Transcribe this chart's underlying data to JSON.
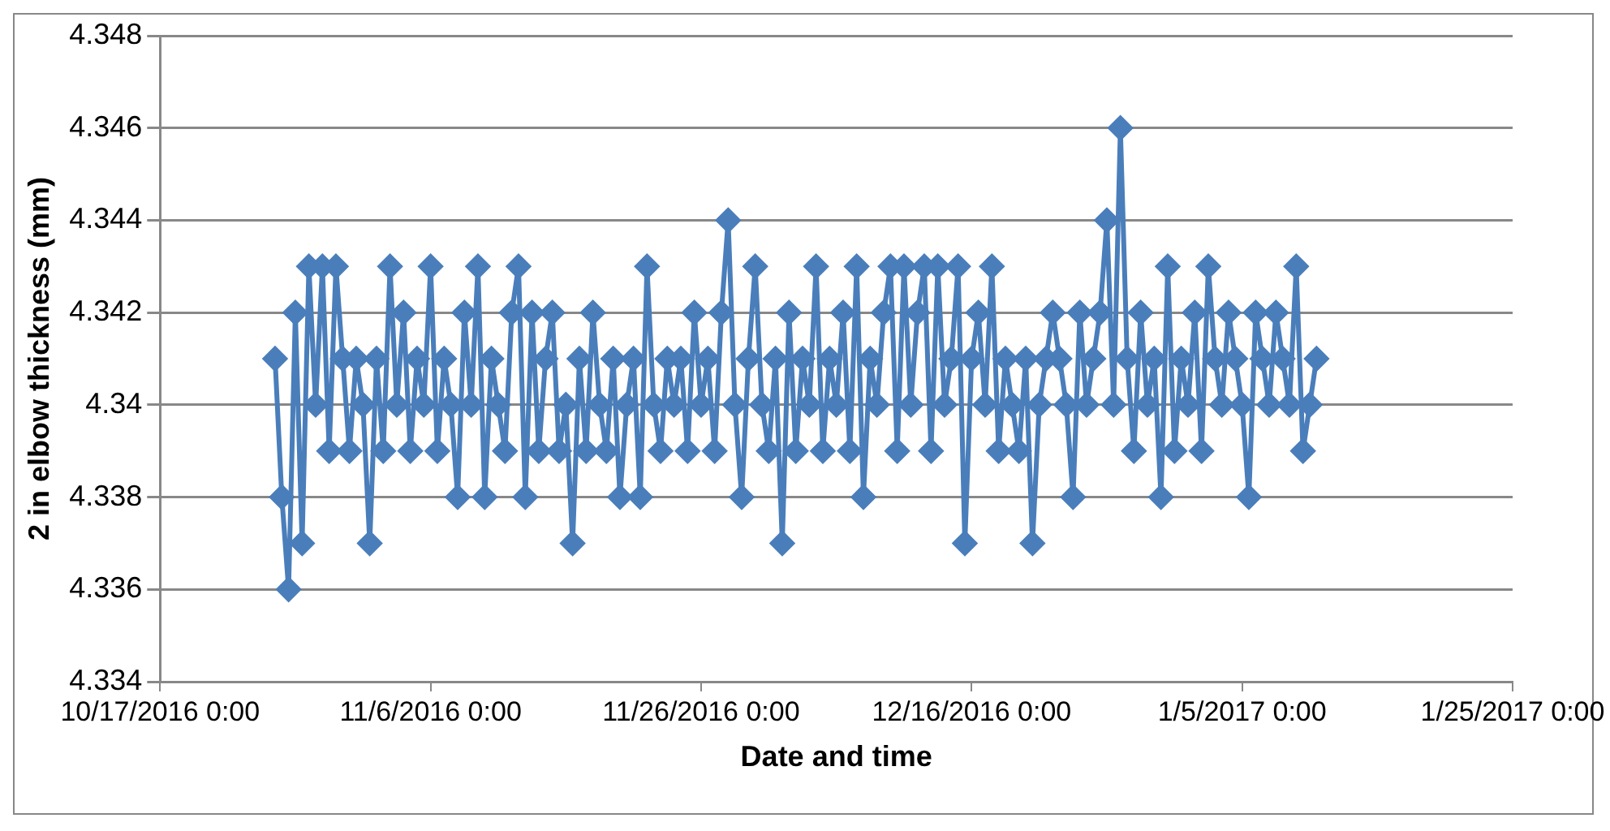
{
  "chart_data": {
    "type": "line",
    "xlabel": "Date and time",
    "ylabel": "2 in elbow thickness (mm)",
    "x": [
      "2016-10-25T12:00",
      "2016-10-26T00:00",
      "2016-10-26T12:00",
      "2016-10-27T00:00",
      "2016-10-27T12:00",
      "2016-10-28T00:00",
      "2016-10-28T12:00",
      "2016-10-29T00:00",
      "2016-10-29T12:00",
      "2016-10-30T00:00",
      "2016-10-30T12:00",
      "2016-10-31T00:00",
      "2016-10-31T12:00",
      "2016-11-01T00:00",
      "2016-11-01T12:00",
      "2016-11-02T00:00",
      "2016-11-02T12:00",
      "2016-11-03T00:00",
      "2016-11-03T12:00",
      "2016-11-04T00:00",
      "2016-11-04T12:00",
      "2016-11-05T00:00",
      "2016-11-05T12:00",
      "2016-11-06T00:00",
      "2016-11-06T12:00",
      "2016-11-07T00:00",
      "2016-11-07T12:00",
      "2016-11-08T00:00",
      "2016-11-08T12:00",
      "2016-11-09T00:00",
      "2016-11-09T12:00",
      "2016-11-10T00:00",
      "2016-11-10T12:00",
      "2016-11-11T00:00",
      "2016-11-11T12:00",
      "2016-11-12T00:00",
      "2016-11-12T12:00",
      "2016-11-13T00:00",
      "2016-11-13T12:00",
      "2016-11-14T00:00",
      "2016-11-14T12:00",
      "2016-11-15T00:00",
      "2016-11-15T12:00",
      "2016-11-16T00:00",
      "2016-11-16T12:00",
      "2016-11-17T00:00",
      "2016-11-17T12:00",
      "2016-11-18T00:00",
      "2016-11-18T12:00",
      "2016-11-19T00:00",
      "2016-11-19T12:00",
      "2016-11-20T00:00",
      "2016-11-20T12:00",
      "2016-11-21T00:00",
      "2016-11-21T12:00",
      "2016-11-22T00:00",
      "2016-11-22T12:00",
      "2016-11-23T00:00",
      "2016-11-23T12:00",
      "2016-11-24T00:00",
      "2016-11-24T12:00",
      "2016-11-25T00:00",
      "2016-11-25T12:00",
      "2016-11-26T00:00",
      "2016-11-26T12:00",
      "2016-11-27T00:00",
      "2016-11-27T12:00",
      "2016-11-28T00:00",
      "2016-11-28T12:00",
      "2016-11-29T00:00",
      "2016-11-29T12:00",
      "2016-11-30T00:00",
      "2016-11-30T12:00",
      "2016-12-01T00:00",
      "2016-12-01T12:00",
      "2016-12-02T00:00",
      "2016-12-02T12:00",
      "2016-12-03T00:00",
      "2016-12-03T12:00",
      "2016-12-04T00:00",
      "2016-12-04T12:00",
      "2016-12-05T00:00",
      "2016-12-05T12:00",
      "2016-12-06T00:00",
      "2016-12-06T12:00",
      "2016-12-07T00:00",
      "2016-12-07T12:00",
      "2016-12-08T00:00",
      "2016-12-08T12:00",
      "2016-12-09T00:00",
      "2016-12-09T12:00",
      "2016-12-10T00:00",
      "2016-12-10T12:00",
      "2016-12-11T00:00",
      "2016-12-11T12:00",
      "2016-12-12T00:00",
      "2016-12-12T12:00",
      "2016-12-13T00:00",
      "2016-12-13T12:00",
      "2016-12-14T00:00",
      "2016-12-14T12:00",
      "2016-12-15T00:00",
      "2016-12-15T12:00",
      "2016-12-16T00:00",
      "2016-12-16T12:00",
      "2016-12-17T00:00",
      "2016-12-17T12:00",
      "2016-12-18T00:00",
      "2016-12-18T12:00",
      "2016-12-19T00:00",
      "2016-12-19T12:00",
      "2016-12-20T00:00",
      "2016-12-20T12:00",
      "2016-12-21T00:00",
      "2016-12-21T12:00",
      "2016-12-22T00:00",
      "2016-12-22T12:00",
      "2016-12-23T00:00",
      "2016-12-23T12:00",
      "2016-12-24T00:00",
      "2016-12-24T12:00",
      "2016-12-25T00:00",
      "2016-12-25T12:00",
      "2016-12-26T00:00",
      "2016-12-26T12:00",
      "2016-12-27T00:00",
      "2016-12-27T12:00",
      "2016-12-28T00:00",
      "2016-12-28T12:00",
      "2016-12-29T00:00",
      "2016-12-29T12:00",
      "2016-12-30T00:00",
      "2016-12-30T12:00",
      "2016-12-31T00:00",
      "2016-12-31T12:00",
      "2017-01-01T00:00",
      "2017-01-01T12:00",
      "2017-01-02T00:00",
      "2017-01-02T12:00",
      "2017-01-03T00:00",
      "2017-01-03T12:00",
      "2017-01-04T00:00",
      "2017-01-04T12:00",
      "2017-01-05T00:00",
      "2017-01-05T12:00",
      "2017-01-06T00:00",
      "2017-01-06T12:00",
      "2017-01-07T00:00",
      "2017-01-07T12:00",
      "2017-01-08T00:00",
      "2017-01-08T12:00",
      "2017-01-09T00:00",
      "2017-01-09T12:00",
      "2017-01-10T00:00",
      "2017-01-10T12:00"
    ],
    "series": [
      {
        "color": "#4a7ebb",
        "values": [
          4.341,
          4.338,
          4.336,
          4.342,
          4.337,
          4.343,
          4.34,
          4.343,
          4.339,
          4.343,
          4.341,
          4.339,
          4.341,
          4.34,
          4.337,
          4.341,
          4.339,
          4.343,
          4.34,
          4.342,
          4.339,
          4.341,
          4.34,
          4.343,
          4.339,
          4.341,
          4.34,
          4.338,
          4.342,
          4.34,
          4.343,
          4.338,
          4.341,
          4.34,
          4.339,
          4.342,
          4.343,
          4.338,
          4.342,
          4.339,
          4.341,
          4.342,
          4.339,
          4.34,
          4.337,
          4.341,
          4.339,
          4.342,
          4.34,
          4.339,
          4.341,
          4.338,
          4.34,
          4.341,
          4.338,
          4.343,
          4.34,
          4.339,
          4.341,
          4.34,
          4.341,
          4.339,
          4.342,
          4.34,
          4.341,
          4.339,
          4.342,
          4.344,
          4.34,
          4.338,
          4.341,
          4.343,
          4.34,
          4.339,
          4.341,
          4.337,
          4.342,
          4.339,
          4.341,
          4.34,
          4.343,
          4.339,
          4.341,
          4.34,
          4.342,
          4.339,
          4.343,
          4.338,
          4.341,
          4.34,
          4.342,
          4.343,
          4.339,
          4.343,
          4.34,
          4.342,
          4.343,
          4.339,
          4.343,
          4.34,
          4.341,
          4.343,
          4.337,
          4.341,
          4.342,
          4.34,
          4.343,
          4.339,
          4.341,
          4.34,
          4.339,
          4.341,
          4.337,
          4.34,
          4.341,
          4.342,
          4.341,
          4.34,
          4.338,
          4.342,
          4.34,
          4.341,
          4.342,
          4.344,
          4.34,
          4.346,
          4.341,
          4.339,
          4.342,
          4.34,
          4.341,
          4.338,
          4.343,
          4.339,
          4.341,
          4.34,
          4.342,
          4.339,
          4.343,
          4.341,
          4.34,
          4.342,
          4.341,
          4.34,
          4.338,
          4.342,
          4.341,
          4.34,
          4.342,
          4.341,
          4.34,
          4.343,
          4.339,
          4.34,
          4.341
        ]
      }
    ],
    "xlim": [
      "2016-10-17",
      "2017-01-25"
    ],
    "xticks": [
      {
        "value": "2016-10-17",
        "label": "10/17/2016 0:00"
      },
      {
        "value": "2016-11-06",
        "label": "11/6/2016 0:00"
      },
      {
        "value": "2016-11-26",
        "label": "11/26/2016 0:00"
      },
      {
        "value": "2016-12-16",
        "label": "12/16/2016 0:00"
      },
      {
        "value": "2017-01-05",
        "label": "1/5/2017 0:00"
      },
      {
        "value": "2017-01-25",
        "label": "1/25/2017 0:00"
      }
    ],
    "ylim": [
      4.334,
      4.348
    ],
    "yticks": [
      4.334,
      4.336,
      4.338,
      4.34,
      4.342,
      4.344,
      4.346,
      4.348
    ],
    "grid": "y",
    "legend": false,
    "marker": "diamond",
    "line_style": "solid"
  }
}
